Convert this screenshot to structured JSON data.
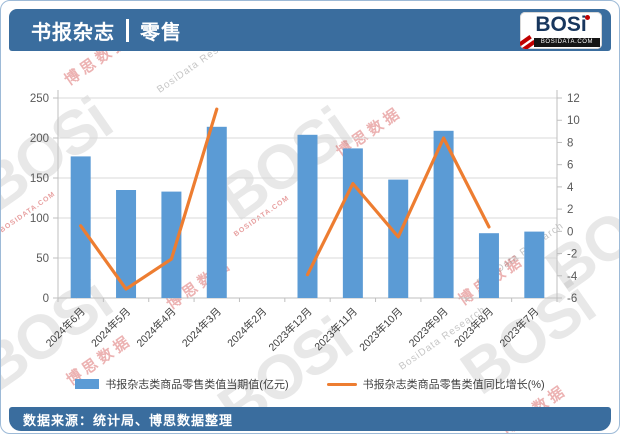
{
  "header": {
    "title": "书报杂志",
    "divider": "|",
    "subtitle": "零售"
  },
  "logo": {
    "name": "BOSi",
    "site": "BOSIDATA.COM"
  },
  "watermark": {
    "brand": "BOSi",
    "brand_cn": "博思数据",
    "research": "BosiData Research",
    "domain": "BOSIDATA.COM"
  },
  "chart_data": {
    "type": "bar+line combo",
    "categories": [
      "2024年6月",
      "2024年5月",
      "2024年4月",
      "2024年3月",
      "2024年2月",
      "2023年12月",
      "2023年11月",
      "2023年10月",
      "2023年9月",
      "2023年8月",
      "2023年7月"
    ],
    "series": [
      {
        "name": "书报杂志类商品零售类值当期值(亿元)",
        "type": "bar",
        "axis": "left",
        "color": "#5B9BD5",
        "values": [
          177,
          135,
          133,
          214,
          null,
          204,
          187,
          148,
          209,
          81,
          83
        ]
      },
      {
        "name": "书报杂志类商品零售类值同比增长(%)",
        "type": "line",
        "axis": "right",
        "color": "#ED7D31",
        "values": [
          0.5,
          -5.2,
          -2.5,
          11.0,
          null,
          -3.9,
          4.3,
          -0.5,
          8.4,
          0.4,
          null
        ]
      }
    ],
    "left_axis": {
      "min": 0,
      "max": 250,
      "step": 50,
      "ticks": [
        0,
        50,
        100,
        150,
        200,
        250
      ]
    },
    "right_axis": {
      "min": -6,
      "max": 12,
      "step": 2,
      "ticks": [
        -6,
        -4,
        -2,
        0,
        2,
        4,
        6,
        8,
        10,
        12
      ]
    },
    "grid": true,
    "legend_position": "bottom",
    "grid_color": "#D9D9D9",
    "axis_color": "#BFBFBF",
    "tick_label_color": "#595959"
  },
  "footer": {
    "source": "数据来源：统计局、博思数据整理"
  }
}
